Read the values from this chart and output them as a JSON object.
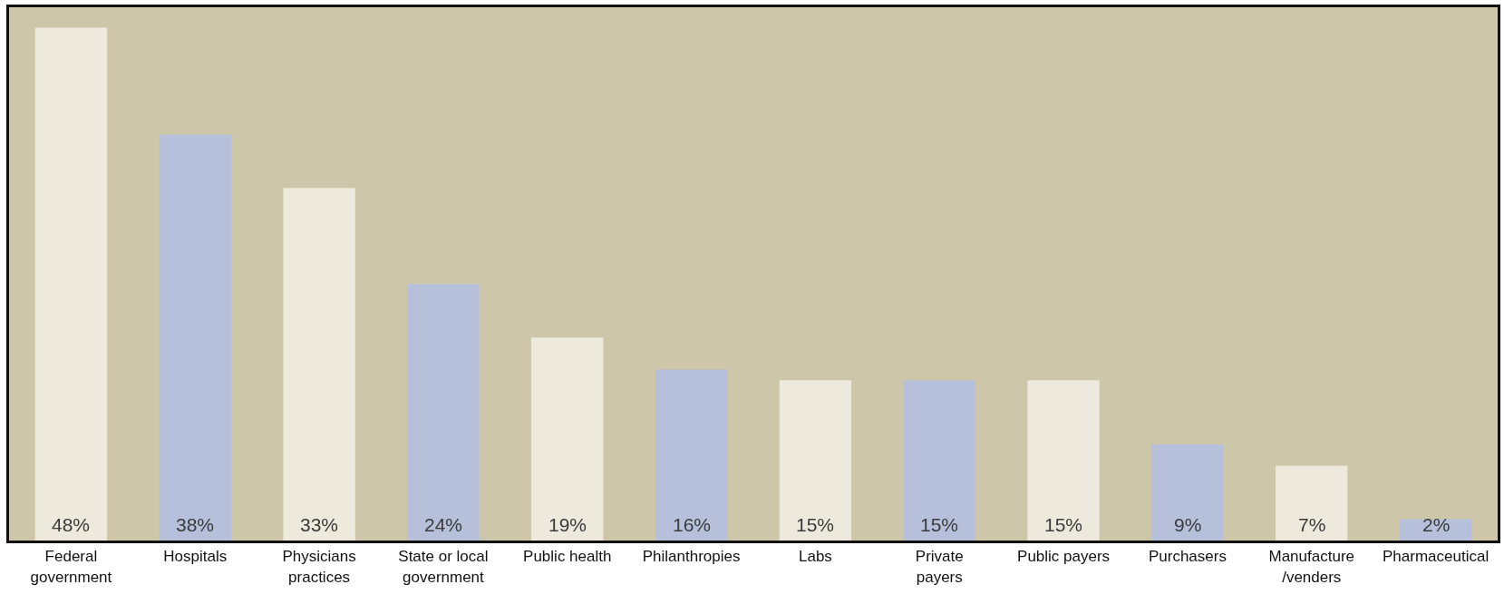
{
  "chart_data": {
    "type": "bar",
    "categories": [
      "Federal\ngovernment",
      "Hospitals",
      "Physicians\npractices",
      "State or local\ngovernment",
      "Public health",
      "Philanthropies",
      "Labs",
      "Private\npayers",
      "Public payers",
      "Purchasers",
      "Manufacture\n/venders",
      "Pharmaceutical"
    ],
    "values": [
      48,
      38,
      33,
      24,
      19,
      16,
      15,
      15,
      15,
      9,
      7,
      2
    ],
    "value_labels": [
      "48%",
      "38%",
      "33%",
      "24%",
      "19%",
      "16%",
      "15%",
      "15%",
      "15%",
      "9%",
      "7%",
      "2%"
    ],
    "colors": [
      "#edeadd",
      "#b6c0db",
      "#edeadd",
      "#b6c0db",
      "#edeadd",
      "#b6c0db",
      "#edeadd",
      "#b6c0db",
      "#edeadd",
      "#b6c0db",
      "#edeadd",
      "#b6c0db"
    ],
    "tick_labels": "x"
  }
}
